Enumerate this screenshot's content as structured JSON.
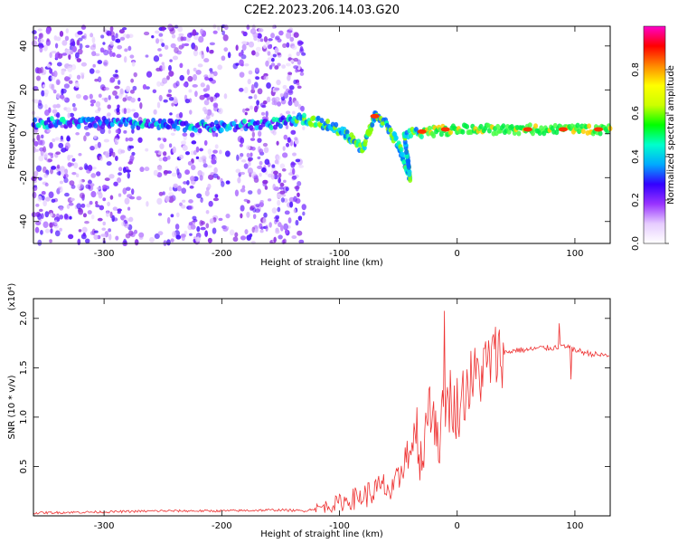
{
  "title": "C2E2.2023.206.14.03.G20",
  "chart_data": [
    {
      "type": "heatmap",
      "xlabel": "Height of straight line (km)",
      "ylabel": "Frequency (Hz)",
      "xlim": [
        -360,
        130
      ],
      "ylim": [
        -50,
        49
      ],
      "xticks": [
        -300,
        -200,
        -100,
        0,
        100
      ],
      "yticks": [
        -40,
        -20,
        0,
        20,
        40
      ],
      "colorbar": {
        "label": "Normalized spectral amplitude",
        "range": [
          0.0,
          1.0
        ],
        "ticks": [
          0.0,
          0.2,
          0.4,
          0.6,
          0.8
        ],
        "colors": [
          "#ffffff",
          "#e6ccff",
          "#9933ff",
          "#3300ff",
          "#00aaff",
          "#00ffcc",
          "#00ff00",
          "#ccff00",
          "#ffff00",
          "#ff8800",
          "#ff0000",
          "#ff00cc"
        ]
      },
      "features": {
        "scatter_region_x": [
          -360,
          -130
        ],
        "main_ridge": [
          [
            -360,
            5
          ],
          [
            -300,
            5
          ],
          [
            -250,
            4
          ],
          [
            -200,
            3
          ],
          [
            -150,
            5
          ],
          [
            -130,
            7
          ],
          [
            -110,
            4
          ],
          [
            -95,
            0
          ],
          [
            -80,
            -7
          ],
          [
            -70,
            8
          ],
          [
            -60,
            4
          ],
          [
            -50,
            -5
          ],
          [
            -40,
            -20
          ],
          [
            -45,
            0
          ],
          [
            -20,
            1
          ],
          [
            0,
            2
          ],
          [
            50,
            2
          ],
          [
            100,
            2
          ],
          [
            130,
            2
          ]
        ]
      }
    },
    {
      "type": "line",
      "xlabel": "Height of straight line (km)",
      "ylabel": "SNR (10 * v/v)",
      "scale_label": "(x10⁴)",
      "xlim": [
        -360,
        130
      ],
      "ylim": [
        0.0,
        2.2
      ],
      "xticks": [
        -300,
        -200,
        -100,
        0,
        100
      ],
      "yticks": [
        0.5,
        1.0,
        1.5,
        2.0
      ],
      "series": [
        {
          "color": "#ee3333",
          "x": [
            -360,
            -300,
            -250,
            -200,
            -150,
            -130,
            -110,
            -95,
            -80,
            -70,
            -60,
            -55,
            -50,
            -45,
            -40,
            -35,
            -30,
            -25,
            -20,
            -15,
            -10,
            -5,
            0,
            10,
            20,
            30,
            40,
            50,
            60,
            70,
            80,
            90,
            95,
            100,
            110,
            120,
            130
          ],
          "y": [
            0.03,
            0.04,
            0.05,
            0.05,
            0.06,
            0.05,
            0.1,
            0.15,
            0.2,
            0.25,
            0.3,
            0.2,
            0.35,
            0.6,
            0.7,
            0.9,
            0.6,
            1.0,
            1.1,
            0.8,
            1.1,
            1.2,
            1.1,
            1.35,
            1.45,
            1.6,
            1.65,
            1.68,
            1.68,
            1.7,
            1.7,
            1.72,
            1.7,
            1.68,
            1.65,
            1.63,
            1.62
          ]
        }
      ]
    }
  ]
}
